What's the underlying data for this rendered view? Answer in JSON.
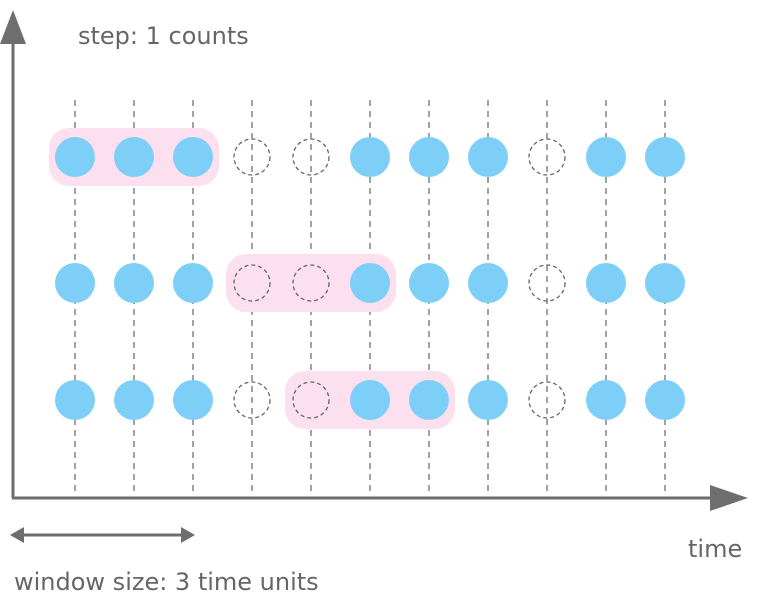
{
  "labels": {
    "step": "step: 1 counts",
    "x_axis": "time",
    "window_size": "window size: 3 time units"
  },
  "time_slots": 11,
  "rows": [
    {
      "events": [
        1,
        1,
        1,
        0,
        0,
        1,
        1,
        1,
        0,
        1,
        1
      ],
      "window": {
        "start": 0,
        "size": 3
      }
    },
    {
      "events": [
        1,
        1,
        1,
        0,
        0,
        1,
        1,
        1,
        0,
        1,
        1
      ],
      "window": {
        "start": 3,
        "size": 3
      }
    },
    {
      "events": [
        1,
        1,
        1,
        0,
        0,
        1,
        1,
        1,
        0,
        1,
        1
      ],
      "window": {
        "start": 4,
        "size": 3
      }
    }
  ],
  "colors": {
    "axis": "#6e6e6e",
    "event": "#7ecff7",
    "empty_stroke": "#666666",
    "window": "#fce0ef",
    "gridline": "#444444",
    "text": "#666666"
  }
}
